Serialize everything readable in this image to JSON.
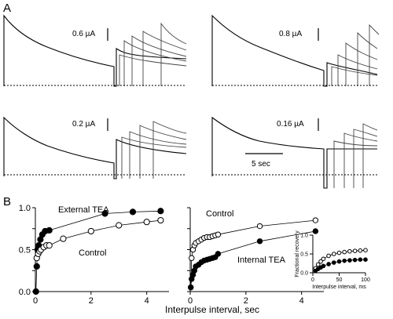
{
  "panel_a": {
    "letter": "A",
    "time_scale_label": "5 sec",
    "traces": [
      {
        "condition": "",
        "scale_label": "0.6 µA"
      },
      {
        "condition": "",
        "scale_label": "0.8 µA"
      },
      {
        "condition": "External TEA",
        "scale_label": "0.2 µA"
      },
      {
        "condition": "Internal TEA",
        "scale_label": "0.16 µA"
      }
    ]
  },
  "panel_b": {
    "letter": "B",
    "shared_xlabel": "Interpulse interval, sec"
  },
  "chart_data": [
    {
      "type": "scatter",
      "title": "",
      "xlabel": "Interpulse interval, sec",
      "ylabel": "",
      "xlim": [
        0,
        4.8
      ],
      "ylim": [
        0,
        1.0
      ],
      "xticks": [
        "0",
        "2",
        "4"
      ],
      "yticks": [
        "0.0",
        "0.5",
        "1.0"
      ],
      "series": [
        {
          "name": "External TEA",
          "marker": "filled-circle",
          "color": "#000000",
          "x": [
            0.02,
            0.05,
            0.08,
            0.12,
            0.18,
            0.25,
            0.35,
            0.5,
            2.5,
            3.5,
            4.5
          ],
          "y": [
            0.0,
            0.3,
            0.5,
            0.55,
            0.62,
            0.68,
            0.72,
            0.73,
            0.93,
            0.95,
            0.96
          ]
        },
        {
          "name": "Control",
          "marker": "open-circle",
          "color": "#000000",
          "x": [
            0.05,
            0.1,
            0.15,
            0.2,
            0.3,
            0.4,
            0.5,
            1.0,
            2.0,
            3.0,
            4.0,
            4.5
          ],
          "y": [
            0.4,
            0.45,
            0.48,
            0.5,
            0.53,
            0.55,
            0.55,
            0.63,
            0.72,
            0.79,
            0.83,
            0.85
          ]
        }
      ]
    },
    {
      "type": "scatter",
      "title": "",
      "xlabel": "Interpulse interval, sec",
      "ylabel": "",
      "xlim": [
        0,
        4.8
      ],
      "ylim": [
        0,
        1.0
      ],
      "xticks": [
        "0",
        "2",
        "4"
      ],
      "yticks": [],
      "series": [
        {
          "name": "Control",
          "marker": "open-circle",
          "color": "#000000",
          "x": [
            0.02,
            0.05,
            0.1,
            0.15,
            0.2,
            0.3,
            0.4,
            0.5,
            0.6,
            0.7,
            0.8,
            0.9,
            1.0,
            2.5,
            4.5
          ],
          "y": [
            0.05,
            0.4,
            0.5,
            0.55,
            0.58,
            0.6,
            0.62,
            0.64,
            0.65,
            0.65,
            0.66,
            0.67,
            0.68,
            0.78,
            0.85
          ]
        },
        {
          "name": "Internal TEA",
          "marker": "filled-circle",
          "color": "#000000",
          "x": [
            0.02,
            0.05,
            0.1,
            0.15,
            0.2,
            0.3,
            0.4,
            0.5,
            0.6,
            0.7,
            0.8,
            0.9,
            1.0,
            2.5,
            4.5
          ],
          "y": [
            0.05,
            0.15,
            0.2,
            0.25,
            0.3,
            0.32,
            0.35,
            0.37,
            0.38,
            0.39,
            0.4,
            0.41,
            0.45,
            0.6,
            0.72
          ]
        }
      ]
    },
    {
      "type": "scatter",
      "title": "",
      "xlabel": "Interpulse interval, ms",
      "ylabel": "Fractional recovery",
      "xlim": [
        0,
        100
      ],
      "ylim": [
        0,
        1.0
      ],
      "xticks": [
        "0",
        "50",
        "100"
      ],
      "yticks": [
        "0.0",
        "0.5",
        "1.0"
      ],
      "series": [
        {
          "name": "Control",
          "marker": "open-circle",
          "color": "#000000",
          "x": [
            5,
            10,
            15,
            20,
            30,
            40,
            50,
            60,
            70,
            80,
            90,
            100
          ],
          "y": [
            0.12,
            0.22,
            0.3,
            0.37,
            0.45,
            0.5,
            0.53,
            0.55,
            0.57,
            0.58,
            0.59,
            0.6
          ]
        },
        {
          "name": "Internal TEA",
          "marker": "filled-circle",
          "color": "#000000",
          "x": [
            5,
            10,
            15,
            20,
            30,
            40,
            50,
            60,
            70,
            80,
            90,
            100
          ],
          "y": [
            0.05,
            0.1,
            0.14,
            0.18,
            0.23,
            0.27,
            0.3,
            0.32,
            0.33,
            0.34,
            0.35,
            0.35
          ]
        }
      ]
    }
  ]
}
